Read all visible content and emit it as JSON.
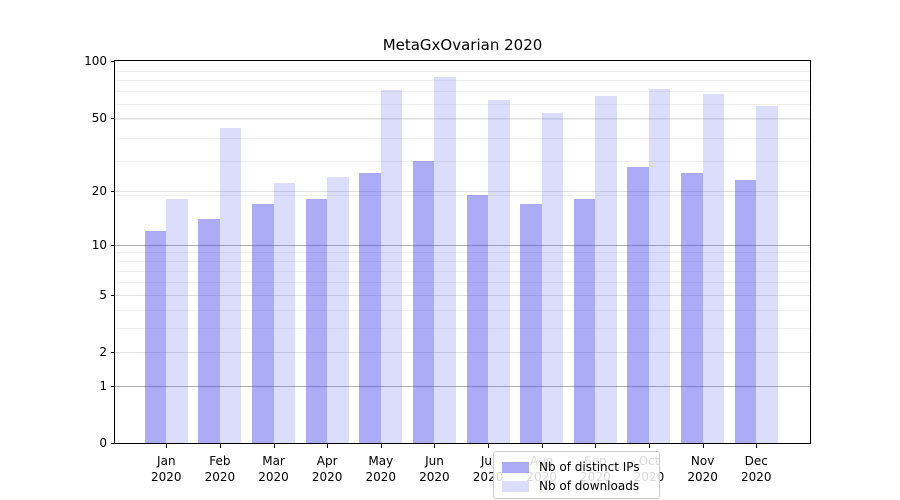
{
  "title": "MetaGxOvarian 2020",
  "legend": {
    "entries": [
      {
        "label": "Nb of distinct IPs"
      },
      {
        "label": "Nb of downloads"
      }
    ],
    "position": "lower center"
  },
  "palette": {
    "bar_base": "#4646eb",
    "ips_bar": "rgba(70,70,235,0.45)",
    "downloads_bar": "rgba(70,70,235,0.19)",
    "grid_emphasis": "#b0b0b0",
    "grid_major": "#e0e0e0",
    "grid_minor": "#efefef",
    "frame": "#000000"
  },
  "chart_data": {
    "type": "bar",
    "title": "MetaGxOvarian 2020",
    "categories": [
      "Jan",
      "Feb",
      "Mar",
      "Apr",
      "May",
      "Jun",
      "Jul",
      "Aug",
      "Sep",
      "Oct",
      "Nov",
      "Dec"
    ],
    "year_label": "2020",
    "series": [
      {
        "name": "Nb of distinct IPs",
        "color": "rgba(70,70,235,0.45)",
        "values": [
          12,
          14,
          17,
          18,
          25,
          29,
          19,
          17,
          18,
          27,
          25,
          23
        ]
      },
      {
        "name": "Nb of downloads",
        "color": "rgba(70,70,235,0.19)",
        "values": [
          18,
          44,
          22,
          24,
          70,
          82,
          62,
          53,
          65,
          71,
          67,
          58
        ]
      }
    ],
    "xlabel": "",
    "ylabel": "",
    "yscale": "log1p",
    "ylim": [
      0,
      100
    ],
    "yticks": [
      0,
      1,
      2,
      5,
      10,
      20,
      50,
      100
    ],
    "emphasized_gridlines": [
      1,
      10
    ],
    "minor_gridlines": [
      3,
      4,
      6,
      7,
      8,
      9,
      19,
      29,
      39,
      49,
      59,
      69,
      79,
      89
    ],
    "grid": true,
    "legend_position": "lower center"
  }
}
